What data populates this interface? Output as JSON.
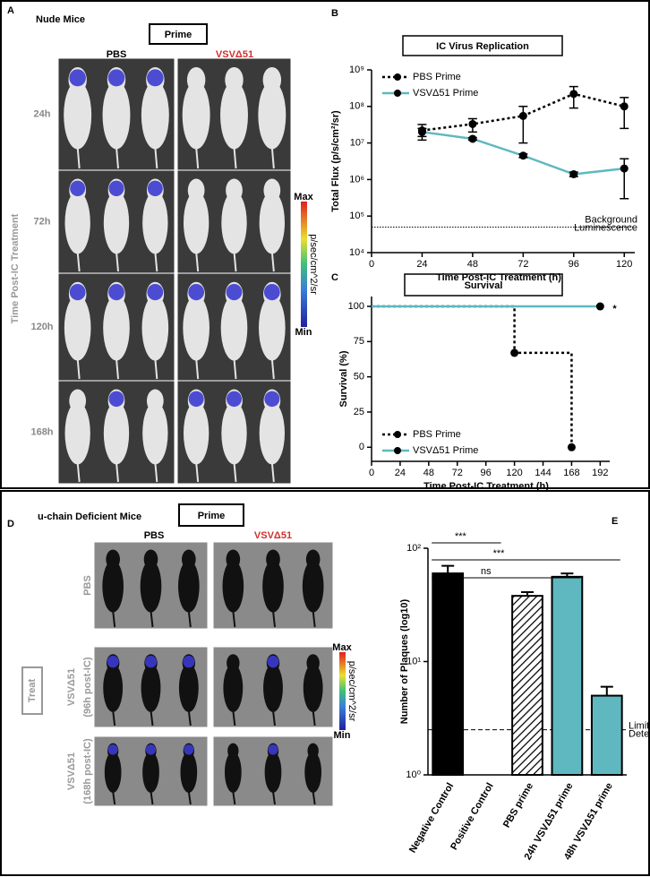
{
  "panel_a": {
    "letter": "A",
    "title": "Nude Mice",
    "prime": "Prime",
    "columns": [
      "PBS",
      "VSVΔ51"
    ],
    "rows": [
      "24h",
      "72h",
      "120h",
      "168h"
    ],
    "side_label": "Time Post-IC Treatment",
    "colorbar": {
      "max": "Max",
      "min": "Min",
      "unit": "p/sec/cm^2/sr"
    }
  },
  "panel_d": {
    "letter": "D",
    "title": "u-chain Deficient Mice",
    "prime": "Prime",
    "columns": [
      "PBS",
      "VSVΔ51"
    ],
    "rows": [
      [
        "PBS"
      ],
      [
        "VSVΔ51",
        "(96h post-IC)"
      ],
      [
        "VSVΔ51",
        "(168h post-IC)"
      ]
    ],
    "side_label": "Treat",
    "colorbar": {
      "max": "Max",
      "min": "Min",
      "unit": "p/sec/cm^2/sr"
    }
  },
  "chart_data": [
    {
      "panel": "B",
      "type": "line",
      "title": "IC Virus Replication",
      "xlabel": "Time Post-IC Treatment (h)",
      "ylabel": "Total Flux (p/s/cm²/sr)",
      "x": [
        24,
        48,
        72,
        96,
        120
      ],
      "xlim": [
        0,
        125
      ],
      "xticks": [
        0,
        24,
        48,
        72,
        96,
        120
      ],
      "ylog": true,
      "ylim": [
        10000,
        1000000000
      ],
      "yticks": [
        {
          "value": 10000,
          "label": "10⁴"
        },
        {
          "value": 100000,
          "label": "10⁵"
        },
        {
          "value": 1000000,
          "label": "10⁶"
        },
        {
          "value": 10000000,
          "label": "10⁷"
        },
        {
          "value": 100000000,
          "label": "10⁸"
        },
        {
          "value": 1000000000,
          "label": "10⁹"
        }
      ],
      "legend": "upper left",
      "hline": {
        "value": 50000,
        "label": [
          "Background",
          "Luminescence"
        ]
      },
      "series": [
        {
          "name": "PBS Prime",
          "color": "#000000",
          "linestyle": "dotted",
          "values": [
            22000000,
            33000000,
            55000000,
            220000000,
            100000000
          ],
          "errors": [
            10000000,
            13000000,
            45000000,
            130000000,
            75000000
          ]
        },
        {
          "name": "VSVΔ51 Prime",
          "color": "#5fb8c0",
          "linestyle": "solid",
          "values": [
            20000000,
            13000000,
            4500000,
            1400000,
            2000000
          ],
          "errors": [
            5000000,
            1000000,
            500000,
            200000,
            1700000
          ]
        }
      ]
    },
    {
      "panel": "C",
      "type": "step",
      "title": "Survival",
      "xlabel": "Time Post-IC Treatment (h)",
      "ylabel": "Survival (%)",
      "xlim": [
        0,
        200
      ],
      "xticks": [
        0,
        24,
        48,
        72,
        96,
        120,
        144,
        168,
        192
      ],
      "ylim": [
        -10,
        107
      ],
      "yticks": [
        0,
        25,
        50,
        75,
        100
      ],
      "legend": "lower left",
      "annotation": "*",
      "series": [
        {
          "name": "PBS Prime",
          "color": "#000000",
          "linestyle": "dotted",
          "x": [
            0,
            120,
            120,
            168,
            168
          ],
          "values": [
            100,
            100,
            67,
            67,
            0
          ]
        },
        {
          "name": "VSVΔ51 Prime",
          "color": "#5fb8c0",
          "linestyle": "solid",
          "x": [
            0,
            192
          ],
          "values": [
            100,
            100
          ]
        }
      ]
    },
    {
      "panel": "E",
      "type": "bar",
      "ylabel": "Number of Plaques (log10)",
      "categories": [
        "Negative Control",
        "Positive Control",
        "PBS prime",
        "24h VSVΔ51 prime",
        "48h VSVΔ51 prime"
      ],
      "values": [
        60,
        null,
        38,
        56,
        5
      ],
      "errors": [
        10,
        null,
        3,
        4,
        1
      ],
      "colors": [
        "#000000",
        "#000000",
        "#ffffff",
        "#5fb8c0",
        "#5fb8c0"
      ],
      "hatch": [
        false,
        false,
        true,
        false,
        false
      ],
      "ylog": true,
      "ylim": [
        1,
        100
      ],
      "yticks": [
        {
          "value": 1,
          "label": "10⁰"
        },
        {
          "value": 10,
          "label": "10¹"
        },
        {
          "value": 100,
          "label": "10²"
        }
      ],
      "hline": {
        "value": 2.5,
        "label": [
          "Limit of",
          "Detection"
        ]
      },
      "significance": [
        "***",
        "***",
        "ns"
      ]
    }
  ]
}
